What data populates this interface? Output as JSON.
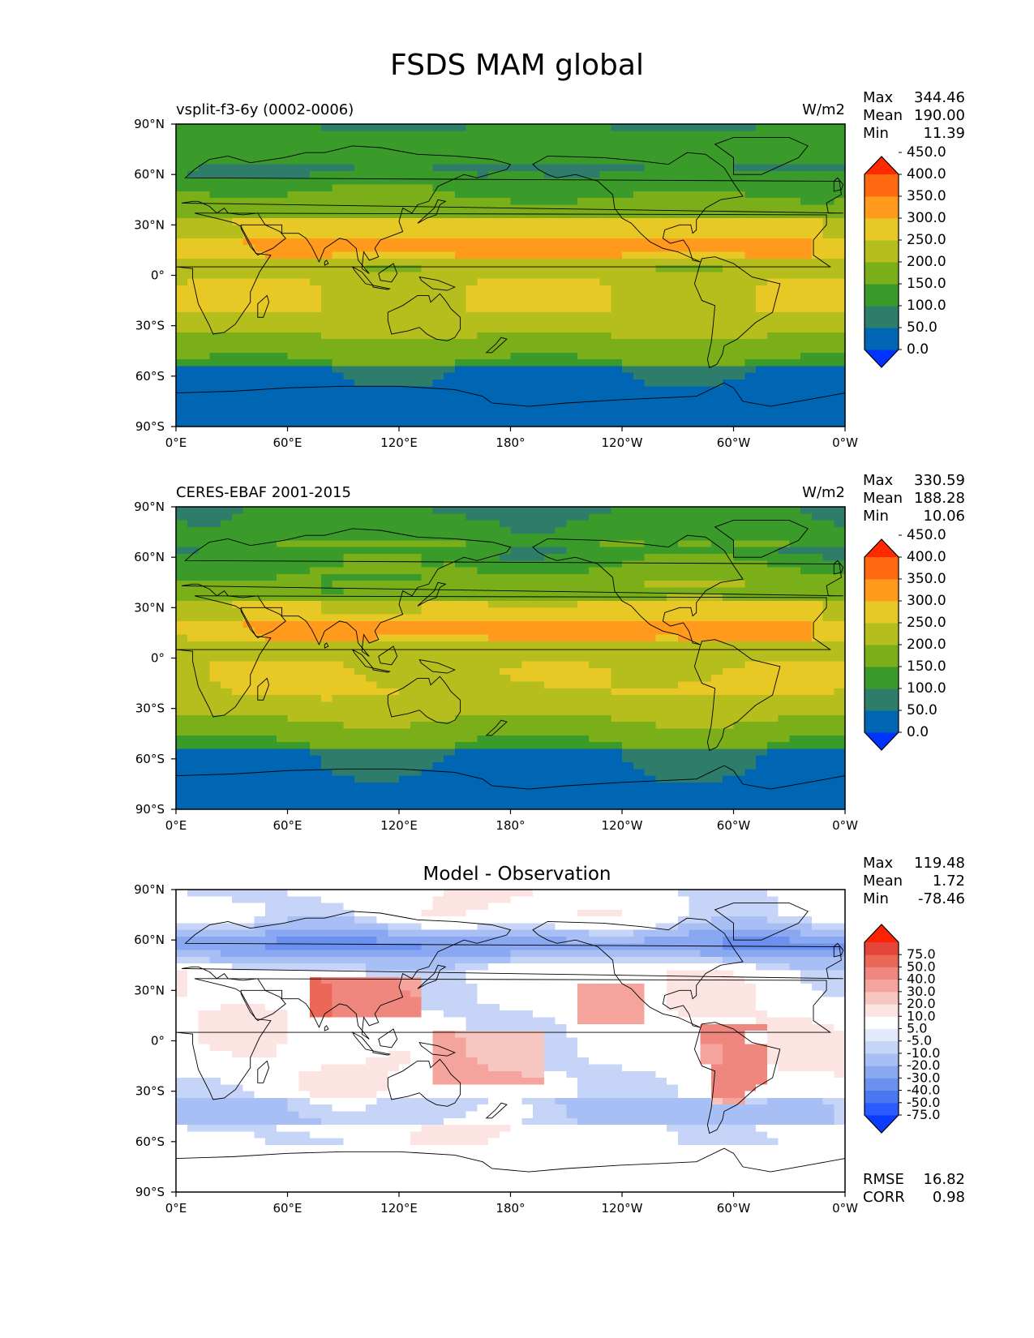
{
  "title": "FSDS MAM global",
  "lat_ticks": [
    "90°N",
    "60°N",
    "30°N",
    "0°",
    "30°S",
    "60°S",
    "90°S"
  ],
  "lon_ticks": [
    "0°E",
    "60°E",
    "120°E",
    "180°",
    "120°W",
    "60°W",
    "0°W"
  ],
  "stat_labels": {
    "max": "Max",
    "mean": "Mean",
    "min": "Min",
    "rmse": "RMSE",
    "corr": "CORR"
  },
  "colors": {
    "abs_levels": [
      "#0033ff",
      "#0066b3",
      "#2e7d6b",
      "#3a9a2a",
      "#7aaf1a",
      "#b5be1c",
      "#e8c825",
      "#ff9a1c",
      "#ff6a10",
      "#ff2a00"
    ],
    "diff_levels": [
      "#0a3cff",
      "#2b5bff",
      "#4a77f2",
      "#6b90f0",
      "#8aa8f2",
      "#a8bff5",
      "#c6d4f7",
      "#e2e9fb",
      "#ffffff",
      "#fbe4e1",
      "#f8c6c0",
      "#f4a49c",
      "#f0877e",
      "#eb6858",
      "#e4453a",
      "#ff2200"
    ]
  },
  "chart_data": [
    {
      "type": "heatmap",
      "title": "vsplit-f3-6y (0002-0006)",
      "units": "W/m2",
      "stats": {
        "max": "344.46",
        "mean": "190.00",
        "min": "11.39"
      },
      "colorbar_ticks": [
        "0.0",
        "50.0",
        "100.0",
        "150.0",
        "200.0",
        "250.0",
        "300.0",
        "350.0",
        "400.0",
        "450.0"
      ],
      "colorbar_extend": "both",
      "xlim": [
        0,
        360
      ],
      "ylim": [
        -90,
        90
      ],
      "grid": false
    },
    {
      "type": "heatmap",
      "title": "CERES-EBAF 2001-2015",
      "units": "W/m2",
      "stats": {
        "max": "330.59",
        "mean": "188.28",
        "min": "10.06"
      },
      "colorbar_ticks": [
        "0.0",
        "50.0",
        "100.0",
        "150.0",
        "200.0",
        "250.0",
        "300.0",
        "350.0",
        "400.0",
        "450.0"
      ],
      "colorbar_extend": "both",
      "xlim": [
        0,
        360
      ],
      "ylim": [
        -90,
        90
      ],
      "grid": false
    },
    {
      "type": "heatmap",
      "title": "Model - Observation",
      "units": "",
      "stats": {
        "max": "119.48",
        "mean": "1.72",
        "min": "-78.46"
      },
      "rmse": "16.82",
      "corr": "0.98",
      "colorbar_ticks": [
        "-75.0",
        "-50.0",
        "-40.0",
        "-30.0",
        "-20.0",
        "-10.0",
        "-5.0",
        "5.0",
        "10.0",
        "20.0",
        "30.0",
        "40.0",
        "50.0",
        "75.0"
      ],
      "colorbar_extend": "both",
      "xlim": [
        0,
        360
      ],
      "ylim": [
        -90,
        90
      ],
      "grid": false
    }
  ]
}
